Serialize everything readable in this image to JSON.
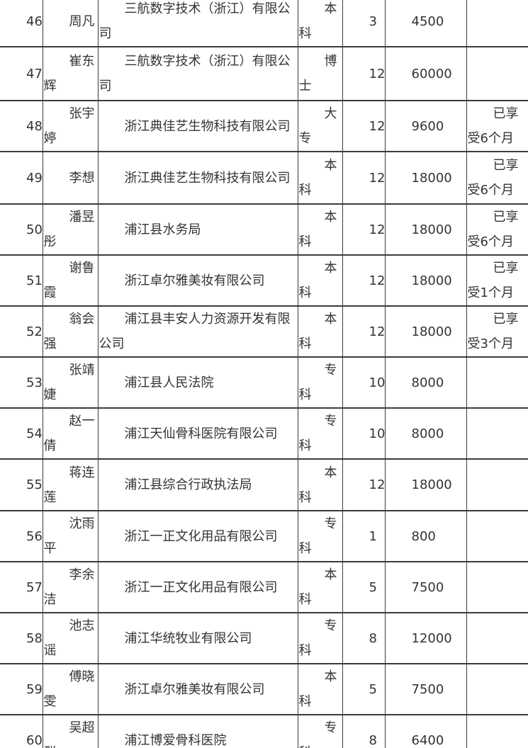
{
  "document": {
    "table": {
      "rows": [
        {
          "no": "46",
          "name": "周凡",
          "company": "三航数字技术（浙江）有限公司",
          "education": "本科",
          "months": "3",
          "amount": "4500",
          "note": ""
        },
        {
          "no": "47",
          "name": "崔东辉",
          "company": "三航数字技术（浙江）有限公司",
          "education": "博士",
          "months": "12",
          "amount": "60000",
          "note": ""
        },
        {
          "no": "48",
          "name": "张宇婷",
          "company": "浙江典佳艺生物科技有限公司",
          "education": "大专",
          "months": "12",
          "amount": "9600",
          "note": "已享受6个月"
        },
        {
          "no": "49",
          "name": "李想",
          "company": "浙江典佳艺生物科技有限公司",
          "education": "本科",
          "months": "12",
          "amount": "18000",
          "note": "已享受6个月"
        },
        {
          "no": "50",
          "name": "潘昱彤",
          "company": "浦江县水务局",
          "education": "本科",
          "months": "12",
          "amount": "18000",
          "note": "已享受6个月"
        },
        {
          "no": "51",
          "name": "谢鲁霞",
          "company": "浙江卓尔雅美妆有限公司",
          "education": "本科",
          "months": "12",
          "amount": "18000",
          "note": "已享受1个月"
        },
        {
          "no": "52",
          "name": "翁会强",
          "company": "浦江县丰安人力资源开发有限公司",
          "education": "本科",
          "months": "12",
          "amount": "18000",
          "note": "已享受3个月"
        },
        {
          "no": "53",
          "name": "张靖婕",
          "company": "浦江县人民法院",
          "education": "专科",
          "months": "10",
          "amount": "8000",
          "note": ""
        },
        {
          "no": "54",
          "name": "赵一倩",
          "company": "浦江天仙骨科医院有限公司",
          "education": "专科",
          "months": "10",
          "amount": "8000",
          "note": ""
        },
        {
          "no": "55",
          "name": "蒋连莲",
          "company": "浦江县综合行政执法局",
          "education": "本科",
          "months": "12",
          "amount": "18000",
          "note": ""
        },
        {
          "no": "56",
          "name": "沈雨平",
          "company": "浙江一正文化用品有限公司",
          "education": "专科",
          "months": "1",
          "amount": "800",
          "note": ""
        },
        {
          "no": "57",
          "name": "李余洁",
          "company": "浙江一正文化用品有限公司",
          "education": "本科",
          "months": "5",
          "amount": "7500",
          "note": ""
        },
        {
          "no": "58",
          "name": "池志谣",
          "company": "浦江华统牧业有限公司",
          "education": "专科",
          "months": "8",
          "amount": "12000",
          "note": ""
        },
        {
          "no": "59",
          "name": "傅晓雯",
          "company": "浙江卓尔雅美妆有限公司",
          "education": "本科",
          "months": "5",
          "amount": "7500",
          "note": ""
        },
        {
          "no": "60",
          "name": "吴超群",
          "company": "浦江博爱骨科医院",
          "education": "专科",
          "months": "8",
          "amount": "6400",
          "note": ""
        }
      ]
    },
    "colors": {
      "text": "#333333",
      "border": "#3b3b3b",
      "background": "#ffffff"
    }
  }
}
